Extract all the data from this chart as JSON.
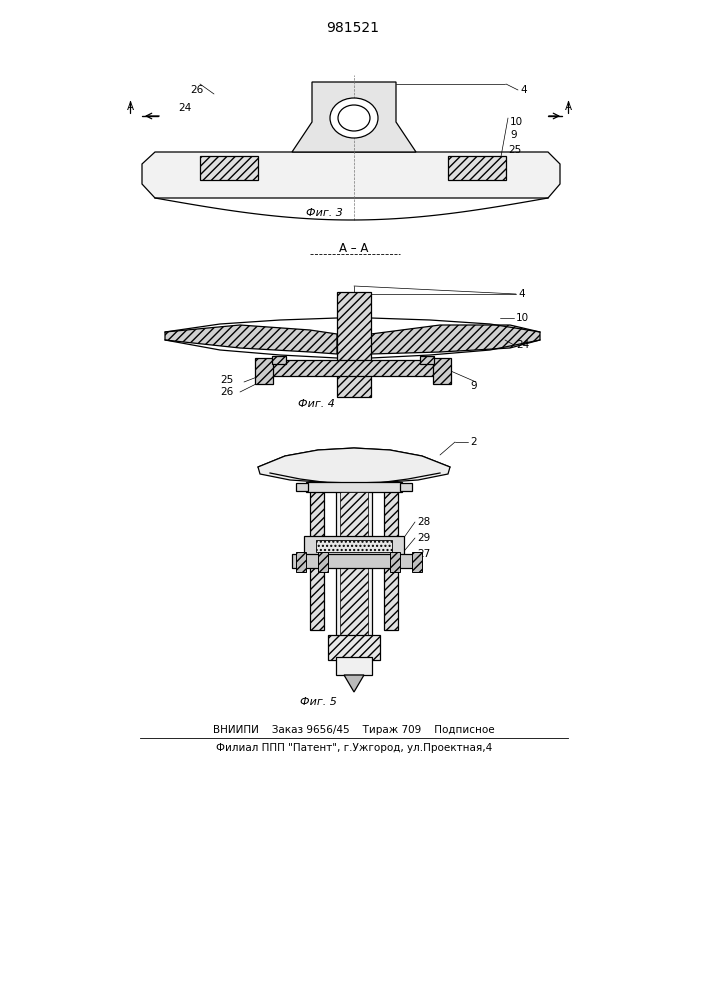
{
  "title": "981521",
  "bg_color": "#ffffff",
  "line_color": "#000000",
  "footer_line1": "ВНИИПИ    Заказ 9656/45    Тираж 709    Подписное",
  "footer_line2": "Филиал ППП \"Патент\", г.Ужгород, ул.Проектная,4"
}
